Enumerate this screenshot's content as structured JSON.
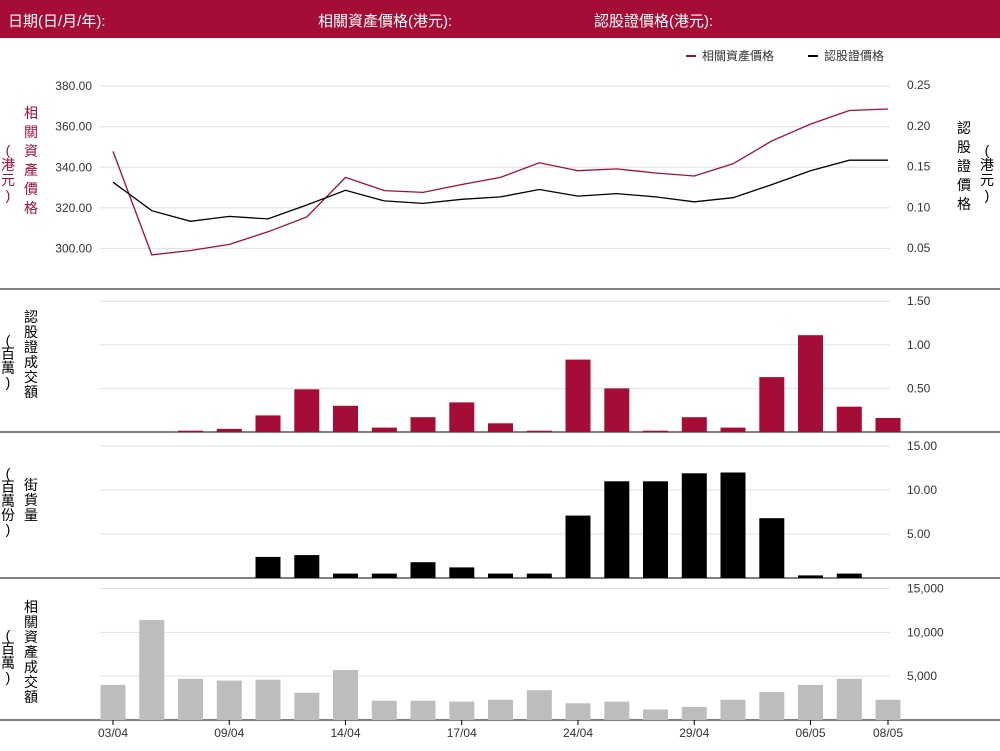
{
  "header": {
    "date_label": "日期(日/月/年):",
    "underlying_label": "相關資產價格(港元):",
    "warrant_label": "認股證價格(港元):"
  },
  "legend": {
    "underlying": "相關資產價格",
    "warrant": "認股證價格"
  },
  "colors": {
    "header_bg": "#a50d36",
    "underlying": "#a50d36",
    "warrant": "#000000",
    "turnover_bar": "#a50d36",
    "outstanding_bar": "#000000",
    "asset_turnover_bar": "#bdbdbd",
    "grid": "#e0e0e0"
  },
  "chart_data": {
    "type": "line",
    "x_tick_labels": [
      "03/04",
      "09/04",
      "14/04",
      "17/04",
      "24/04",
      "29/04",
      "06/05",
      "08/05"
    ],
    "panels": [
      {
        "id": "price",
        "type": "line",
        "left_axis_label": [
          "相",
          "關",
          "資",
          "產",
          "價",
          "格"
        ],
        "left_axis_unit": [
          "(",
          "港",
          "元",
          ")"
        ],
        "right_axis_label": [
          "認",
          "股",
          "證",
          "價",
          "格"
        ],
        "right_axis_unit": [
          "(",
          "港",
          "元",
          ")"
        ],
        "left_ticks": [
          "300.00",
          "320.00",
          "340.00",
          "360.00",
          "380.00"
        ],
        "right_ticks": [
          "0.05",
          "0.10",
          "0.15",
          "0.20",
          "0.25"
        ],
        "left_ylim": [
          280,
          384
        ],
        "right_ylim": [
          0.0,
          0.2588
        ],
        "series": [
          {
            "name": "相關資產價格",
            "axis": "left",
            "values": [
              347.8,
              296.8,
              299.0,
              302.0,
              308.2,
              315.5,
              335.0,
              328.5,
              327.6,
              331.5,
              335.0,
              342.2,
              338.3,
              339.2,
              337.2,
              335.7,
              341.7,
              353.0,
              361.3,
              368.0,
              368.7
            ]
          },
          {
            "name": "認股證價格",
            "axis": "right",
            "values": [
              0.131,
              0.096,
              0.083,
              0.089,
              0.086,
              0.103,
              0.121,
              0.108,
              0.105,
              0.11,
              0.113,
              0.122,
              0.114,
              0.117,
              0.113,
              0.107,
              0.112,
              0.128,
              0.145,
              0.158,
              0.158
            ]
          }
        ]
      },
      {
        "id": "warrant_turnover",
        "type": "bar",
        "left_axis_label": [
          "認",
          "股",
          "證",
          "成",
          "交",
          "額"
        ],
        "left_axis_unit": [
          "(",
          "百",
          "萬",
          ")"
        ],
        "right_ticks": [
          "0.50",
          "1.00",
          "1.50"
        ],
        "ylim": [
          0,
          1.64
        ],
        "values": [
          0,
          0,
          0.015,
          0.035,
          0.19,
          0.49,
          0.3,
          0.05,
          0.17,
          0.34,
          0.1,
          0.015,
          0.83,
          0.5,
          0.015,
          0.17,
          0.05,
          0.63,
          1.11,
          0.29,
          0.16
        ]
      },
      {
        "id": "outstanding",
        "type": "bar",
        "left_axis_label": [
          "街",
          "貨",
          "量"
        ],
        "left_axis_unit": [
          "(",
          "百",
          "萬",
          "份",
          ")"
        ],
        "right_ticks": [
          "5.00",
          "10.00",
          "15.00"
        ],
        "ylim": [
          0,
          16.6
        ],
        "values": [
          0,
          0,
          0,
          0,
          2.4,
          2.6,
          0.5,
          0.5,
          1.8,
          1.2,
          0.5,
          0.5,
          7.1,
          11.0,
          11.0,
          11.9,
          12.0,
          6.8,
          0.3,
          0.5,
          0
        ]
      },
      {
        "id": "asset_turnover",
        "type": "bar",
        "left_axis_label": [
          "相",
          "關",
          "資",
          "產",
          "成",
          "交",
          "額"
        ],
        "left_axis_unit": [
          "(",
          "百",
          "萬",
          ")"
        ],
        "right_ticks": [
          "5,000",
          "10,000",
          "15,000"
        ],
        "ylim": [
          0,
          16200
        ],
        "values": [
          4000,
          11400,
          4700,
          4500,
          4600,
          3100,
          5700,
          2200,
          2200,
          2100,
          2300,
          3400,
          1900,
          2100,
          1200,
          1500,
          2300,
          3200,
          4000,
          4700,
          2300
        ]
      }
    ]
  }
}
